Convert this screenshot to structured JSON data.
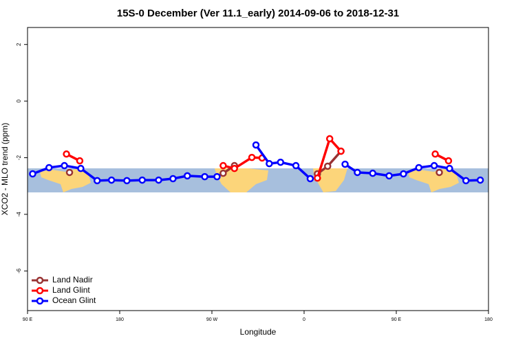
{
  "chart_data": {
    "type": "line",
    "title": "15S-0 December (Ver 11.1_early)   2014-09-06 to 2018-12-31",
    "x_label": "Longitude",
    "y_label": "XCO2 - MLO trend (ppm)",
    "xlim": [
      90,
      540
    ],
    "xticks": [
      {
        "value": 90,
        "label": "90 E"
      },
      {
        "value": 180,
        "label": "180"
      },
      {
        "value": 270,
        "label": "90 W"
      },
      {
        "value": 360,
        "label": "0"
      },
      {
        "value": 450,
        "label": "90 E"
      },
      {
        "value": 540,
        "label": "180"
      }
    ],
    "ylim": [
      -7.4,
      2.6
    ],
    "yticks": [
      2,
      0,
      -2,
      -4,
      -6
    ],
    "legend": "bottom-left",
    "series": [
      {
        "name": "Land Nadir",
        "color": "#993333",
        "x": [
          131,
          null,
          281,
          292,
          null,
          373,
          383,
          396,
          null,
          492
        ],
        "values": [
          -2.52,
          null,
          -2.55,
          -2.28,
          null,
          -2.57,
          -2.3,
          -1.77,
          null,
          -2.52
        ]
      },
      {
        "name": "Land Glint",
        "color": "#ff0000",
        "x": [
          128,
          141,
          null,
          281,
          292,
          309,
          319,
          null,
          373,
          385,
          396,
          null,
          488,
          501
        ],
        "values": [
          -1.87,
          -2.11,
          null,
          -2.28,
          -2.38,
          -1.99,
          -2.01,
          null,
          -2.72,
          -1.33,
          -1.77,
          null,
          -1.87,
          -2.11
        ]
      },
      {
        "name": "Ocean Glint",
        "color": "#0000ff",
        "x": [
          95,
          111,
          126,
          142,
          158,
          172,
          187,
          202,
          218,
          232,
          246,
          263,
          275,
          null,
          313,
          326,
          337,
          352,
          366,
          null,
          400,
          412,
          427,
          443,
          457,
          472,
          487,
          502,
          518,
          532
        ],
        "values": [
          -2.57,
          -2.35,
          -2.28,
          -2.38,
          -2.81,
          -2.79,
          -2.81,
          -2.79,
          -2.79,
          -2.74,
          -2.64,
          -2.67,
          -2.67,
          null,
          -1.55,
          -2.21,
          -2.16,
          -2.28,
          -2.74,
          null,
          -2.23,
          -2.52,
          -2.55,
          -2.64,
          -2.57,
          -2.35,
          -2.28,
          -2.38,
          -2.81,
          -2.79
        ]
      }
    ]
  }
}
